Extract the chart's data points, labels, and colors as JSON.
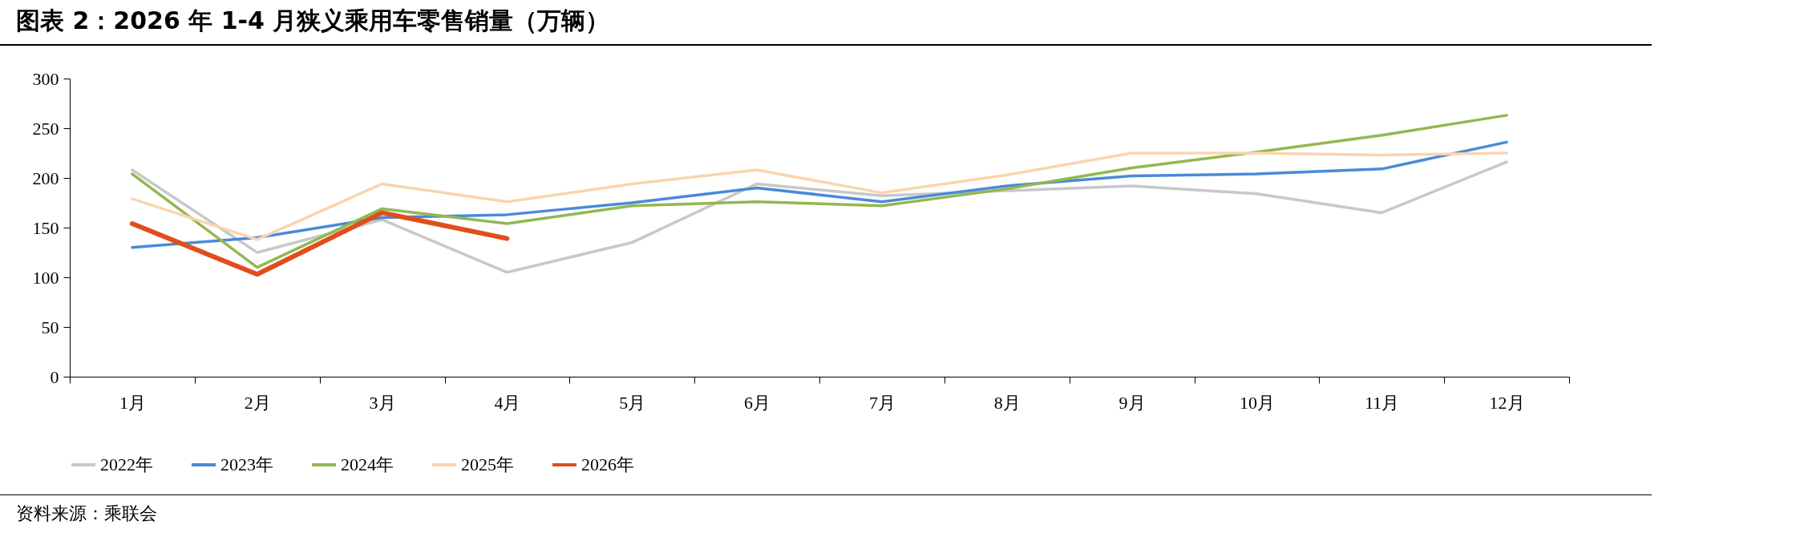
{
  "chart_data": {
    "type": "line",
    "title": "图表 2：2026 年 1-4 月狭义乘用车零售销量（万辆）",
    "categories": [
      "1月",
      "2月",
      "3月",
      "4月",
      "5月",
      "6月",
      "7月",
      "8月",
      "9月",
      "10月",
      "11月",
      "12月"
    ],
    "series": [
      {
        "name": "2022年",
        "color": "#c8c8c8",
        "values": [
          208,
          125,
          158,
          105,
          135,
          194,
          182,
          187,
          192,
          184,
          165,
          216
        ]
      },
      {
        "name": "2023年",
        "color": "#4a8ad8",
        "values": [
          130,
          140,
          160,
          163,
          175,
          190,
          176,
          192,
          202,
          204,
          209,
          236
        ]
      },
      {
        "name": "2024年",
        "color": "#92b84f",
        "values": [
          204,
          110,
          169,
          154,
          172,
          176,
          172,
          189,
          210,
          226,
          243,
          263
        ]
      },
      {
        "name": "2025年",
        "color": "#fad4b0",
        "values": [
          179,
          138,
          194,
          176,
          194,
          208,
          185,
          203,
          225,
          225,
          223,
          225
        ]
      },
      {
        "name": "2026年",
        "color": "#e04e1e",
        "values": [
          154,
          103,
          165,
          139,
          null,
          null,
          null,
          null,
          null,
          null,
          null,
          null
        ]
      }
    ],
    "ylim": [
      0,
      300
    ],
    "yticks": [
      0,
      50,
      100,
      150,
      200,
      250,
      300
    ],
    "grid": false,
    "legend": "bottom",
    "annotations": [
      "资料来源：乘联会"
    ]
  }
}
